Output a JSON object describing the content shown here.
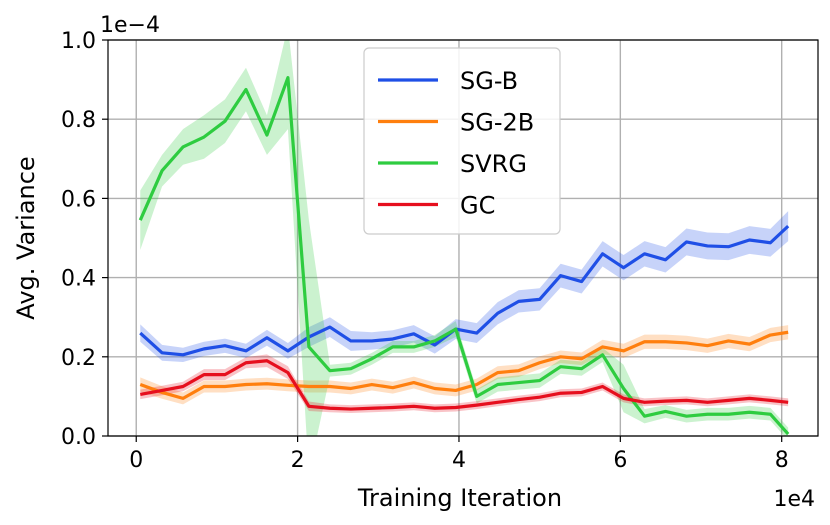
{
  "chart_data": {
    "type": "line",
    "title": "",
    "xlabel": "Training Iteration",
    "ylabel": "Avg. Variance",
    "x_offset_label": "1e4",
    "y_offset_label": "1e−4",
    "xlim": [
      -0.35,
      8.45
    ],
    "ylim": [
      0.0,
      1.0
    ],
    "xticks": [
      0,
      2,
      4,
      6,
      8
    ],
    "xtick_labels": [
      "0",
      "2",
      "4",
      "6",
      "8"
    ],
    "yticks": [
      0.0,
      0.2,
      0.4,
      0.6,
      0.8,
      1.0
    ],
    "ytick_labels": [
      "0.0",
      "0.2",
      "0.4",
      "0.6",
      "0.8",
      "1.0"
    ],
    "grid": true,
    "legend_position": "top-center",
    "x": [
      0.05,
      0.32,
      0.58,
      0.84,
      1.1,
      1.36,
      1.62,
      1.88,
      2.14,
      2.4,
      2.66,
      2.92,
      3.18,
      3.44,
      3.7,
      3.96,
      4.22,
      4.48,
      4.74,
      5.0,
      5.26,
      5.52,
      5.78,
      6.04,
      6.3,
      6.56,
      6.82,
      7.08,
      7.34,
      7.6,
      7.86,
      8.08
    ],
    "series": [
      {
        "name": "SG-B",
        "color": "#1f4fe6",
        "values": [
          0.26,
          0.21,
          0.205,
          0.22,
          0.228,
          0.215,
          0.248,
          0.215,
          0.25,
          0.275,
          0.24,
          0.24,
          0.245,
          0.258,
          0.23,
          0.27,
          0.26,
          0.31,
          0.34,
          0.345,
          0.405,
          0.39,
          0.46,
          0.425,
          0.46,
          0.445,
          0.49,
          0.48,
          0.478,
          0.495,
          0.488,
          0.53
        ],
        "band": [
          0.022,
          0.02,
          0.018,
          0.018,
          0.018,
          0.018,
          0.02,
          0.02,
          0.025,
          0.025,
          0.025,
          0.022,
          0.022,
          0.022,
          0.022,
          0.025,
          0.025,
          0.028,
          0.028,
          0.028,
          0.03,
          0.03,
          0.032,
          0.032,
          0.032,
          0.032,
          0.034,
          0.034,
          0.034,
          0.035,
          0.035,
          0.038
        ]
      },
      {
        "name": "SG-2B",
        "color": "#ff7f0e",
        "values": [
          0.13,
          0.11,
          0.095,
          0.125,
          0.125,
          0.13,
          0.132,
          0.128,
          0.125,
          0.125,
          0.12,
          0.13,
          0.122,
          0.135,
          0.12,
          0.115,
          0.13,
          0.16,
          0.165,
          0.185,
          0.2,
          0.195,
          0.225,
          0.215,
          0.238,
          0.238,
          0.235,
          0.228,
          0.24,
          0.232,
          0.255,
          0.262
        ],
        "band": [
          0.018,
          0.016,
          0.015,
          0.015,
          0.015,
          0.015,
          0.015,
          0.015,
          0.015,
          0.015,
          0.015,
          0.015,
          0.015,
          0.015,
          0.015,
          0.015,
          0.015,
          0.016,
          0.016,
          0.016,
          0.016,
          0.016,
          0.018,
          0.018,
          0.018,
          0.018,
          0.018,
          0.018,
          0.018,
          0.018,
          0.018,
          0.018
        ]
      },
      {
        "name": "SVRG",
        "color": "#2ecc40",
        "values": [
          0.545,
          0.67,
          0.73,
          0.755,
          0.795,
          0.875,
          0.76,
          0.905,
          0.225,
          0.165,
          0.17,
          0.195,
          0.225,
          0.225,
          0.24,
          0.27,
          0.1,
          0.13,
          0.135,
          0.14,
          0.175,
          0.17,
          0.205,
          0.12,
          0.05,
          0.062,
          0.05,
          0.055,
          0.055,
          0.06,
          0.055,
          0.005
        ],
        "band": [
          0.075,
          0.04,
          0.045,
          0.055,
          0.055,
          0.055,
          0.05,
          0.13,
          0.32,
          0.015,
          0.015,
          0.015,
          0.015,
          0.015,
          0.015,
          0.02,
          0.018,
          0.018,
          0.018,
          0.018,
          0.018,
          0.018,
          0.018,
          0.06,
          0.018,
          0.016,
          0.016,
          0.016,
          0.016,
          0.016,
          0.016,
          0.016
        ]
      },
      {
        "name": "GC",
        "color": "#e60f1e",
        "values": [
          0.105,
          0.115,
          0.125,
          0.155,
          0.155,
          0.185,
          0.19,
          0.16,
          0.075,
          0.07,
          0.068,
          0.07,
          0.072,
          0.075,
          0.07,
          0.072,
          0.078,
          0.085,
          0.092,
          0.098,
          0.108,
          0.11,
          0.125,
          0.095,
          0.085,
          0.088,
          0.09,
          0.085,
          0.09,
          0.095,
          0.09,
          0.085
        ],
        "band": [
          0.012,
          0.012,
          0.012,
          0.014,
          0.014,
          0.014,
          0.016,
          0.016,
          0.012,
          0.01,
          0.01,
          0.01,
          0.01,
          0.01,
          0.01,
          0.01,
          0.01,
          0.01,
          0.01,
          0.01,
          0.01,
          0.01,
          0.01,
          0.01,
          0.01,
          0.01,
          0.01,
          0.01,
          0.01,
          0.01,
          0.01,
          0.01
        ]
      }
    ]
  }
}
